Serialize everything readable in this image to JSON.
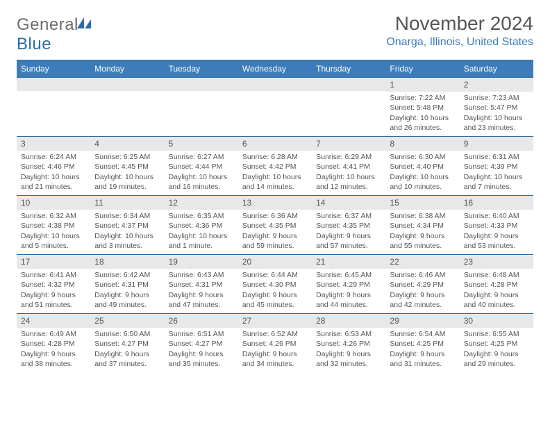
{
  "logo": {
    "part1": "General",
    "part2": "Blue"
  },
  "title": "November 2024",
  "location": "Onarga, Illinois, United States",
  "weekday_bg": "#3d7cb8",
  "rule_color": "#2d6aa8",
  "daynum_bg": "#e8e8e8",
  "text_color": "#555555",
  "weekdays": [
    "Sunday",
    "Monday",
    "Tuesday",
    "Wednesday",
    "Thursday",
    "Friday",
    "Saturday"
  ],
  "weeks": [
    [
      {
        "n": "",
        "lines": []
      },
      {
        "n": "",
        "lines": []
      },
      {
        "n": "",
        "lines": []
      },
      {
        "n": "",
        "lines": []
      },
      {
        "n": "",
        "lines": []
      },
      {
        "n": "1",
        "lines": [
          "Sunrise: 7:22 AM",
          "Sunset: 5:48 PM",
          "Daylight: 10 hours and 26 minutes."
        ]
      },
      {
        "n": "2",
        "lines": [
          "Sunrise: 7:23 AM",
          "Sunset: 5:47 PM",
          "Daylight: 10 hours and 23 minutes."
        ]
      }
    ],
    [
      {
        "n": "3",
        "lines": [
          "Sunrise: 6:24 AM",
          "Sunset: 4:46 PM",
          "Daylight: 10 hours and 21 minutes."
        ]
      },
      {
        "n": "4",
        "lines": [
          "Sunrise: 6:25 AM",
          "Sunset: 4:45 PM",
          "Daylight: 10 hours and 19 minutes."
        ]
      },
      {
        "n": "5",
        "lines": [
          "Sunrise: 6:27 AM",
          "Sunset: 4:44 PM",
          "Daylight: 10 hours and 16 minutes."
        ]
      },
      {
        "n": "6",
        "lines": [
          "Sunrise: 6:28 AM",
          "Sunset: 4:42 PM",
          "Daylight: 10 hours and 14 minutes."
        ]
      },
      {
        "n": "7",
        "lines": [
          "Sunrise: 6:29 AM",
          "Sunset: 4:41 PM",
          "Daylight: 10 hours and 12 minutes."
        ]
      },
      {
        "n": "8",
        "lines": [
          "Sunrise: 6:30 AM",
          "Sunset: 4:40 PM",
          "Daylight: 10 hours and 10 minutes."
        ]
      },
      {
        "n": "9",
        "lines": [
          "Sunrise: 6:31 AM",
          "Sunset: 4:39 PM",
          "Daylight: 10 hours and 7 minutes."
        ]
      }
    ],
    [
      {
        "n": "10",
        "lines": [
          "Sunrise: 6:32 AM",
          "Sunset: 4:38 PM",
          "Daylight: 10 hours and 5 minutes."
        ]
      },
      {
        "n": "11",
        "lines": [
          "Sunrise: 6:34 AM",
          "Sunset: 4:37 PM",
          "Daylight: 10 hours and 3 minutes."
        ]
      },
      {
        "n": "12",
        "lines": [
          "Sunrise: 6:35 AM",
          "Sunset: 4:36 PM",
          "Daylight: 10 hours and 1 minute."
        ]
      },
      {
        "n": "13",
        "lines": [
          "Sunrise: 6:36 AM",
          "Sunset: 4:35 PM",
          "Daylight: 9 hours and 59 minutes."
        ]
      },
      {
        "n": "14",
        "lines": [
          "Sunrise: 6:37 AM",
          "Sunset: 4:35 PM",
          "Daylight: 9 hours and 57 minutes."
        ]
      },
      {
        "n": "15",
        "lines": [
          "Sunrise: 6:38 AM",
          "Sunset: 4:34 PM",
          "Daylight: 9 hours and 55 minutes."
        ]
      },
      {
        "n": "16",
        "lines": [
          "Sunrise: 6:40 AM",
          "Sunset: 4:33 PM",
          "Daylight: 9 hours and 53 minutes."
        ]
      }
    ],
    [
      {
        "n": "17",
        "lines": [
          "Sunrise: 6:41 AM",
          "Sunset: 4:32 PM",
          "Daylight: 9 hours and 51 minutes."
        ]
      },
      {
        "n": "18",
        "lines": [
          "Sunrise: 6:42 AM",
          "Sunset: 4:31 PM",
          "Daylight: 9 hours and 49 minutes."
        ]
      },
      {
        "n": "19",
        "lines": [
          "Sunrise: 6:43 AM",
          "Sunset: 4:31 PM",
          "Daylight: 9 hours and 47 minutes."
        ]
      },
      {
        "n": "20",
        "lines": [
          "Sunrise: 6:44 AM",
          "Sunset: 4:30 PM",
          "Daylight: 9 hours and 45 minutes."
        ]
      },
      {
        "n": "21",
        "lines": [
          "Sunrise: 6:45 AM",
          "Sunset: 4:29 PM",
          "Daylight: 9 hours and 44 minutes."
        ]
      },
      {
        "n": "22",
        "lines": [
          "Sunrise: 6:46 AM",
          "Sunset: 4:29 PM",
          "Daylight: 9 hours and 42 minutes."
        ]
      },
      {
        "n": "23",
        "lines": [
          "Sunrise: 6:48 AM",
          "Sunset: 4:28 PM",
          "Daylight: 9 hours and 40 minutes."
        ]
      }
    ],
    [
      {
        "n": "24",
        "lines": [
          "Sunrise: 6:49 AM",
          "Sunset: 4:28 PM",
          "Daylight: 9 hours and 38 minutes."
        ]
      },
      {
        "n": "25",
        "lines": [
          "Sunrise: 6:50 AM",
          "Sunset: 4:27 PM",
          "Daylight: 9 hours and 37 minutes."
        ]
      },
      {
        "n": "26",
        "lines": [
          "Sunrise: 6:51 AM",
          "Sunset: 4:27 PM",
          "Daylight: 9 hours and 35 minutes."
        ]
      },
      {
        "n": "27",
        "lines": [
          "Sunrise: 6:52 AM",
          "Sunset: 4:26 PM",
          "Daylight: 9 hours and 34 minutes."
        ]
      },
      {
        "n": "28",
        "lines": [
          "Sunrise: 6:53 AM",
          "Sunset: 4:26 PM",
          "Daylight: 9 hours and 32 minutes."
        ]
      },
      {
        "n": "29",
        "lines": [
          "Sunrise: 6:54 AM",
          "Sunset: 4:25 PM",
          "Daylight: 9 hours and 31 minutes."
        ]
      },
      {
        "n": "30",
        "lines": [
          "Sunrise: 6:55 AM",
          "Sunset: 4:25 PM",
          "Daylight: 9 hours and 29 minutes."
        ]
      }
    ]
  ]
}
